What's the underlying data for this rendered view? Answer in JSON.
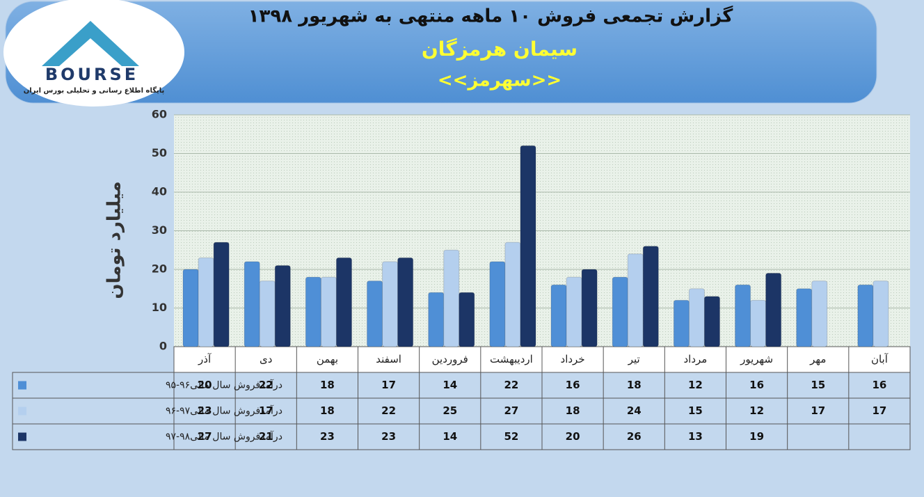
{
  "logo": {
    "name": "BOURSE",
    "tagline": "پایگاه اطلاع رسانی و تحلیلی بورس ایران"
  },
  "chart_data": {
    "type": "bar",
    "title": "گزارش تجمعی فروش ۱۰ ماهه منتهی به شهریور ۱۳۹۸",
    "subtitle": "سیمان هرمزگان",
    "symbol": "<<سهرمز>>",
    "y_label": "میلیارد تومان",
    "categories": [
      "آذر",
      "دی",
      "بهمن",
      "اسفند",
      "فروردین",
      "اردیبهشت",
      "خرداد",
      "تیر",
      "مرداد",
      "شهریور",
      "مهر",
      "آبان"
    ],
    "series": [
      {
        "name": "درآمدفروش سال مالی۹۶-۹۵",
        "color": "#4f8fd6",
        "values": [
          20,
          22,
          18,
          17,
          14,
          22,
          16,
          18,
          12,
          16,
          15,
          16
        ]
      },
      {
        "name": "درآمدفروش سال مالی۹۷-۹۶",
        "color": "#b4cfee",
        "values": [
          23,
          17,
          18,
          22,
          25,
          27,
          18,
          24,
          15,
          12,
          17,
          17
        ]
      },
      {
        "name": "درآمدفروش سال مالی۹۸-۹۷",
        "color": "#1c3566",
        "values": [
          27,
          21,
          23,
          23,
          14,
          52,
          20,
          26,
          13,
          19,
          null,
          null
        ]
      }
    ],
    "ylim": [
      0,
      60
    ],
    "yticks": [
      0,
      10,
      20,
      30,
      40,
      50,
      60
    ],
    "grid": true
  }
}
